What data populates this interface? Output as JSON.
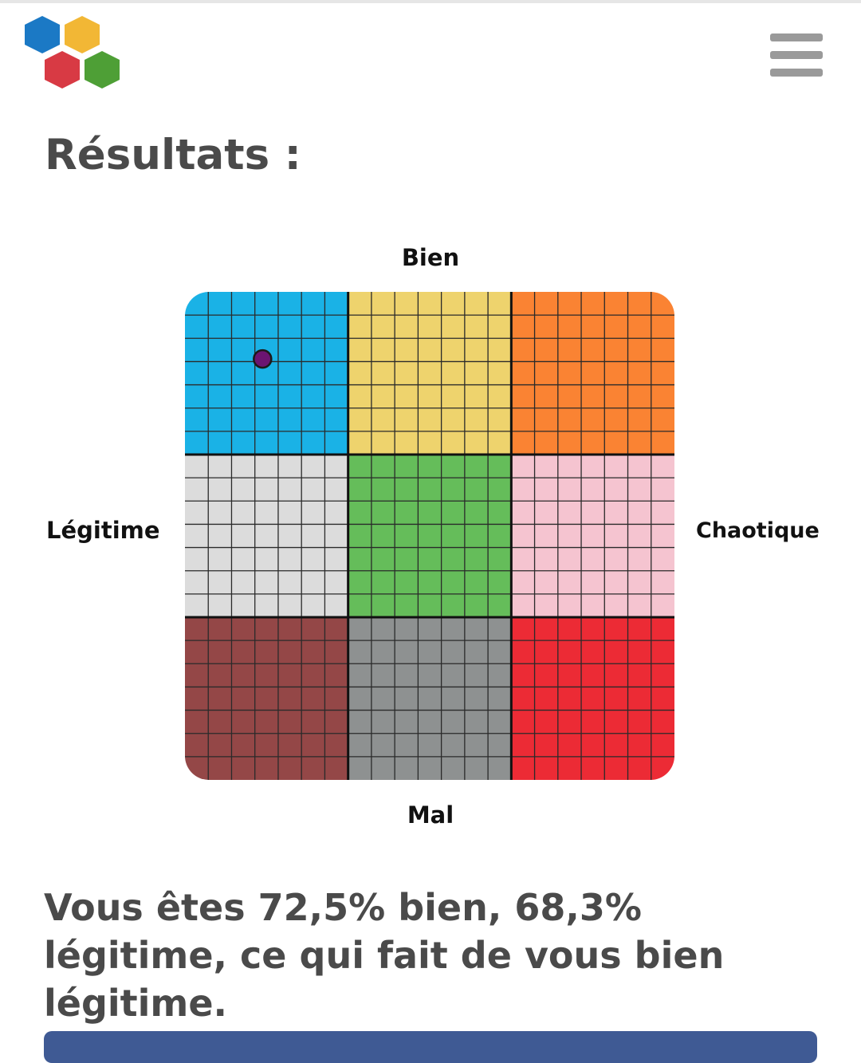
{
  "header": {
    "logo_icon": "hexagon-cluster-logo",
    "logo_colors": [
      "#1b79c5",
      "#f2b735",
      "#d83a44",
      "#4e9f36"
    ],
    "menu_icon": "hamburger-menu-icon"
  },
  "page_title": "Résultats :",
  "chart_data": {
    "type": "scatter",
    "labels": {
      "top": "Bien",
      "bottom": "Mal",
      "left": "Légitime",
      "right": "Chaotique"
    },
    "cell_colors": [
      [
        "#1ab2e6",
        "#eed36d",
        "#fa8333"
      ],
      [
        "#dcdcdc",
        "#65bd5a",
        "#f5c4d0"
      ],
      [
        "#944747",
        "#8e9191",
        "#ec2b35"
      ]
    ],
    "subdivisions_per_cell": 7,
    "x_range": [
      100,
      -100
    ],
    "y_range": [
      -100,
      100
    ],
    "point": {
      "x": 68.3,
      "y": 72.5,
      "color": "#6b1471"
    }
  },
  "result_text": "Vous êtes 72,5% bien, 68,3% légitime, ce qui fait de vous bien légitime.",
  "bottom_button": {
    "color": "#3f5a94"
  }
}
